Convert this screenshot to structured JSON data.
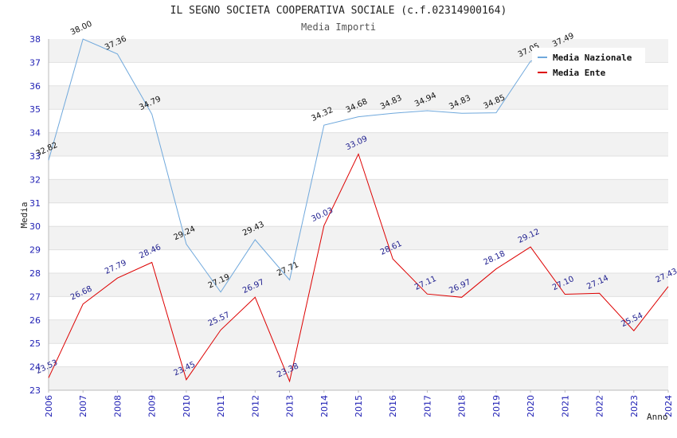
{
  "chart_data": {
    "type": "line",
    "title": "IL SEGNO SOCIETA COOPERATIVA SOCIALE (c.f.02314900164)",
    "subtitle": "Media Importi",
    "xlabel": "Anno",
    "ylabel": "Media",
    "ylim": [
      23,
      38
    ],
    "yticks": [
      "23",
      "24",
      "25",
      "26",
      "27",
      "28",
      "29",
      "30",
      "31",
      "32",
      "33",
      "34",
      "35",
      "36",
      "37",
      "38"
    ],
    "x": [
      "2006",
      "2007",
      "2008",
      "2009",
      "2010",
      "2011",
      "2012",
      "2013",
      "2014",
      "2015",
      "2016",
      "2017",
      "2018",
      "2019",
      "2020",
      "2021",
      "2022",
      "2023",
      "2024"
    ],
    "grid": "horizontal-bands",
    "legend_position": "top-right",
    "series": [
      {
        "name": "Media Nazionale",
        "color": "#6fa8dc",
        "values": [
          32.82,
          38.0,
          37.36,
          34.79,
          29.24,
          27.19,
          29.43,
          27.71,
          34.32,
          34.68,
          34.83,
          34.94,
          34.83,
          34.85,
          37.05,
          37.49,
          null,
          null,
          null
        ],
        "labels": [
          "32.82",
          "38.00",
          "37.36",
          "34.79",
          "29.24",
          "27.19",
          "29.43",
          "27.71",
          "34.32",
          "34.68",
          "34.83",
          "34.94",
          "34.83",
          "34.85",
          "37.05",
          "37.49",
          "",
          "",
          ""
        ]
      },
      {
        "name": "Media Ente",
        "color": "#dd0000",
        "values": [
          23.53,
          26.68,
          27.79,
          28.46,
          23.45,
          25.57,
          26.97,
          23.38,
          30.03,
          33.09,
          28.61,
          27.11,
          26.97,
          28.18,
          29.12,
          27.1,
          27.14,
          25.54,
          27.43
        ],
        "labels": [
          "23.53",
          "26.68",
          "27.79",
          "28.46",
          "23.45",
          "25.57",
          "26.97",
          "23.38",
          "30.03",
          "33.09",
          "28.61",
          "27.11",
          "26.97",
          "28.18",
          "29.12",
          "27.10",
          "27.14",
          "25.54",
          "27.43"
        ]
      }
    ]
  }
}
